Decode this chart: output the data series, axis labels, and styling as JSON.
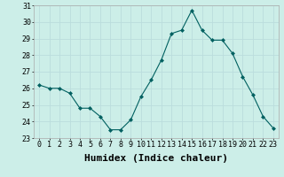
{
  "x": [
    0,
    1,
    2,
    3,
    4,
    5,
    6,
    7,
    8,
    9,
    10,
    11,
    12,
    13,
    14,
    15,
    16,
    17,
    18,
    19,
    20,
    21,
    22,
    23
  ],
  "y": [
    26.2,
    26.0,
    26.0,
    25.7,
    24.8,
    24.8,
    24.3,
    23.5,
    23.5,
    24.1,
    25.5,
    26.5,
    27.7,
    29.3,
    29.5,
    30.7,
    29.5,
    28.9,
    28.9,
    28.1,
    26.7,
    25.6,
    24.3,
    23.6
  ],
  "xlabel": "Humidex (Indice chaleur)",
  "ylim": [
    23,
    31
  ],
  "yticks": [
    23,
    24,
    25,
    26,
    27,
    28,
    29,
    30,
    31
  ],
  "xticks": [
    0,
    1,
    2,
    3,
    4,
    5,
    6,
    7,
    8,
    9,
    10,
    11,
    12,
    13,
    14,
    15,
    16,
    17,
    18,
    19,
    20,
    21,
    22,
    23
  ],
  "line_color": "#006060",
  "marker_color": "#006060",
  "bg_color": "#cceee8",
  "grid_color": "#bbdddd",
  "xlabel_fontsize": 8,
  "tick_fontsize": 6,
  "xlabel_fontweight": "bold"
}
